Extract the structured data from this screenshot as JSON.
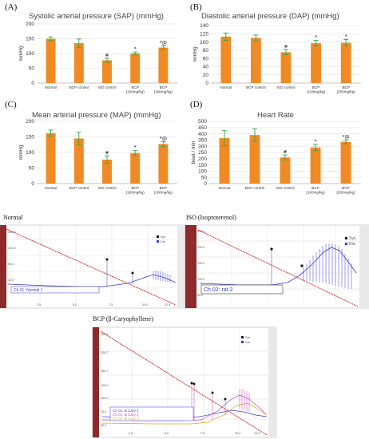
{
  "chart_data": [
    {
      "type": "bar",
      "panel": "(A)",
      "title": "Systolic arterial pressure (SAP) (mmHg)",
      "ylabel": "mmHg",
      "ylim": [
        0,
        200
      ],
      "yticks": [
        0,
        50,
        100,
        150,
        200
      ],
      "categories": [
        "Normal",
        "BCP control",
        "ISO   control",
        "BCP (100mg/kg)",
        "BCP (200mg/kg)"
      ],
      "values": [
        150,
        135,
        77,
        100,
        120
      ],
      "errors": [
        6,
        14,
        7,
        5,
        6
      ],
      "sig": [
        "",
        "",
        "#",
        "*",
        "*@"
      ],
      "color": "#f08a24"
    },
    {
      "type": "bar",
      "panel": "(B)",
      "title": "Diastolic arterial pressure (DAP) (mmHg)",
      "ylabel": "mmHg",
      "ylim": [
        0,
        140
      ],
      "yticks": [
        0,
        20,
        40,
        60,
        80,
        100,
        120,
        140
      ],
      "categories": [
        "Normal",
        "BCP control",
        "ISO   control",
        "BCP (100mg/kg)",
        "BCP (200mg/kg)"
      ],
      "values": [
        113,
        110,
        75,
        97,
        98
      ],
      "errors": [
        9,
        7,
        6,
        7,
        8
      ],
      "sig": [
        "",
        "",
        "#",
        "*",
        "*"
      ],
      "color": "#f08a24"
    },
    {
      "type": "bar",
      "panel": "(C)",
      "title": "Mean arterial pressure (MAP) (mmHg)",
      "ylabel": "mmHg",
      "ylim": [
        0,
        200
      ],
      "yticks": [
        0,
        50,
        100,
        150,
        200
      ],
      "categories": [
        "Normal",
        "BCP control",
        "ISO   control",
        "BCP (100mg/kg)",
        "BCP (200mg/kg)"
      ],
      "values": [
        162,
        145,
        77,
        98,
        127
      ],
      "errors": [
        10,
        20,
        12,
        8,
        8
      ],
      "sig": [
        "",
        "",
        "#",
        "*",
        "*@"
      ],
      "color": "#f08a24"
    },
    {
      "type": "bar",
      "panel": "(D)",
      "title": "Heart Rate",
      "ylabel": "beat / min",
      "ylim": [
        0,
        500
      ],
      "yticks": [
        0,
        50,
        100,
        150,
        200,
        250,
        300,
        350,
        400,
        450,
        500
      ],
      "categories": [
        "Normal",
        "BCP control",
        "ISO   control",
        "BCP (100mg/kg)",
        "BCP (200mg/kg)"
      ],
      "values": [
        365,
        390,
        210,
        290,
        335
      ],
      "errors": [
        60,
        50,
        20,
        25,
        15
      ],
      "sig": [
        "",
        "",
        "#",
        "*",
        "*@"
      ],
      "color": "#f08a24"
    }
  ],
  "traces": [
    {
      "label": "Normal",
      "channel": "Ch 01: Normal 1",
      "legend": [
        "Sys",
        "Dia"
      ],
      "xticks": [
        "2.5",
        "5.0",
        "7.5",
        "10.0",
        "12.5"
      ],
      "yticks": [
        "208.0",
        "100.0",
        "96.0",
        "42.0"
      ]
    },
    {
      "label": "ISO (Isoproterenol)",
      "channel": "Ch 02: rat 2",
      "legend": [
        "Sys",
        "Dia"
      ],
      "yticks": [
        "250.0",
        "200.0",
        "150.0",
        "100.0",
        "50.0"
      ]
    },
    {
      "label": "BCP (β-Caryophyllene)",
      "channel": [
        "Ch 01: B Cary 1",
        "Ch 01: B Cary 2",
        "Ch 01: B Cary 3"
      ],
      "legend": [
        "Sys",
        "Dia"
      ],
      "xticks": [
        "2.5",
        "5.0",
        "7.5",
        "10.0",
        "12.5"
      ],
      "yticks": [
        "250.0",
        "206.7",
        "156.7",
        "125.0",
        "100.0",
        "75.0",
        "50.0"
      ]
    }
  ],
  "colors": {
    "bar": "#f08a24",
    "error": "#2fa84a",
    "sys_trace": "#3a3ad0",
    "ramp": "#cc1d1d"
  }
}
